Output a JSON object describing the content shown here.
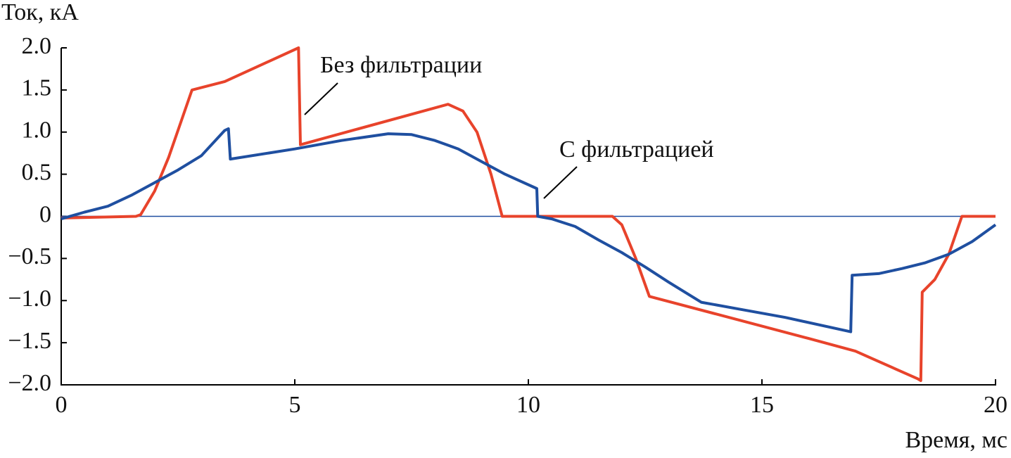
{
  "chart_data": {
    "type": "line",
    "y_label": "Ток, кА",
    "x_label": "Время, мс",
    "xlim": [
      0,
      20
    ],
    "xticks": [
      0,
      5,
      10,
      15,
      20
    ],
    "ylim": [
      -2,
      2
    ],
    "yticks": [
      {
        "value": 2,
        "label": "2.0"
      },
      {
        "value": 1.5,
        "label": "1.5"
      },
      {
        "value": 1,
        "label": "1.0"
      },
      0.5,
      0,
      {
        "value": -0.5,
        "label": "−0.5"
      },
      {
        "value": -1,
        "label": "−1.0"
      },
      {
        "value": -1.5,
        "label": "−1.5"
      },
      {
        "value": -2,
        "label": "−2.0"
      }
    ],
    "series": [
      {
        "name": "Без фильтрации",
        "color": "#e8432b",
        "x": [
          0,
          1.6,
          1.7,
          2.0,
          2.3,
          2.8,
          3.5,
          5.08,
          5.12,
          8.28,
          8.6,
          8.9,
          9.2,
          9.44,
          11.8,
          12.0,
          12.3,
          12.59,
          16.0,
          17.0,
          18.34,
          18.4,
          18.43,
          18.7,
          19.0,
          19.28,
          20
        ],
        "values": [
          -0.02,
          0,
          0.02,
          0.3,
          0.7,
          1.5,
          1.6,
          2.0,
          0.85,
          1.33,
          1.25,
          1.0,
          0.5,
          0,
          0,
          -0.1,
          -0.5,
          -0.95,
          -1.45,
          -1.6,
          -1.93,
          -1.95,
          -0.9,
          -0.75,
          -0.45,
          0,
          0
        ]
      },
      {
        "name": "С фильтрацией",
        "color": "#1f4fa0",
        "x": [
          0,
          0.5,
          1.0,
          1.5,
          2.0,
          2.5,
          3.0,
          3.5,
          3.58,
          3.62,
          5.0,
          6.0,
          7.0,
          7.5,
          8.0,
          8.5,
          9.0,
          9.5,
          10.18,
          10.2,
          10.5,
          11.0,
          11.5,
          12.0,
          12.5,
          13.0,
          13.7,
          14.5,
          15.5,
          16.9,
          16.93,
          17.5,
          18.0,
          18.5,
          19.0,
          19.5,
          20
        ],
        "values": [
          -0.03,
          0.05,
          0.12,
          0.25,
          0.4,
          0.55,
          0.72,
          1.02,
          1.04,
          0.68,
          0.8,
          0.9,
          0.98,
          0.97,
          0.9,
          0.8,
          0.65,
          0.5,
          0.33,
          0,
          -0.03,
          -0.12,
          -0.28,
          -0.43,
          -0.6,
          -0.78,
          -1.02,
          -1.1,
          -1.2,
          -1.37,
          -0.7,
          -0.68,
          -0.62,
          -0.55,
          -0.45,
          -0.3,
          -0.1
        ]
      }
    ]
  }
}
